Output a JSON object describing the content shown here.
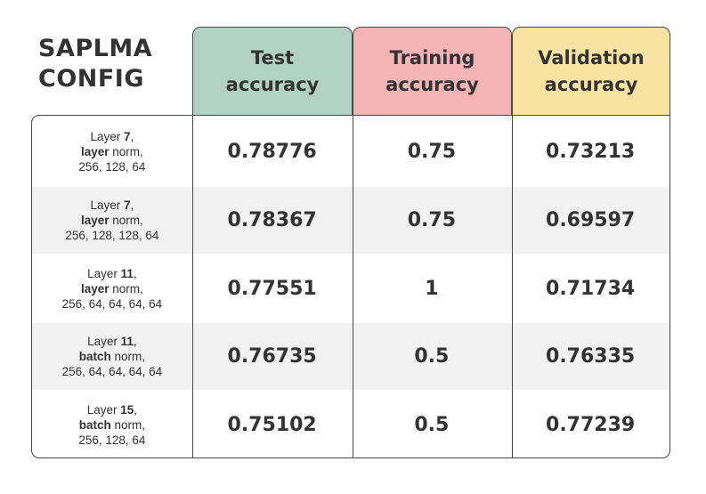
{
  "title_line1": "SAPLMA",
  "title_line2": "CONFIG",
  "headers": {
    "test": [
      "Test",
      "accuracy"
    ],
    "training": [
      "Training",
      "accuracy"
    ],
    "validation": [
      "Validation",
      "accuracy"
    ]
  },
  "colors": {
    "test_header": "#b2d0c3",
    "training_header": "#f1b3b3",
    "validation_header": "#f8e2a4",
    "row_shade": "#f1f1f1",
    "text": "#333333"
  },
  "rows": [
    {
      "layer_label": "Layer ",
      "layer_num": "7",
      "layer_comma": ",",
      "norm_bold": "layer",
      "norm_rest": " norm,",
      "sizes": "256, 128, 64",
      "test": "0.78776",
      "training": "0.75",
      "validation": "0.73213"
    },
    {
      "layer_label": "Layer ",
      "layer_num": "7",
      "layer_comma": ",",
      "norm_bold": "layer",
      "norm_rest": " norm,",
      "sizes": "256, 128, 128, 64",
      "test": "0.78367",
      "training": "0.75",
      "validation": "0.69597"
    },
    {
      "layer_label": "Layer ",
      "layer_num": "11",
      "layer_comma": ",",
      "norm_bold": "layer",
      "norm_rest": " norm,",
      "sizes": "256, 64, 64, 64, 64",
      "test": "0.77551",
      "training": "1",
      "validation": "0.71734"
    },
    {
      "layer_label": "Layer ",
      "layer_num": "11",
      "layer_comma": ",",
      "norm_bold": "batch",
      "norm_rest": " norm,",
      "sizes": "256, 64, 64, 64, 64",
      "test": "0.76735",
      "training": "0.5",
      "validation": "0.76335"
    },
    {
      "layer_label": "Layer ",
      "layer_num": "15",
      "layer_comma": ",",
      "norm_bold": "batch",
      "norm_rest": " norm,",
      "sizes": "256, 128, 64",
      "test": "0.75102",
      "training": "0.5",
      "validation": "0.77239"
    }
  ]
}
